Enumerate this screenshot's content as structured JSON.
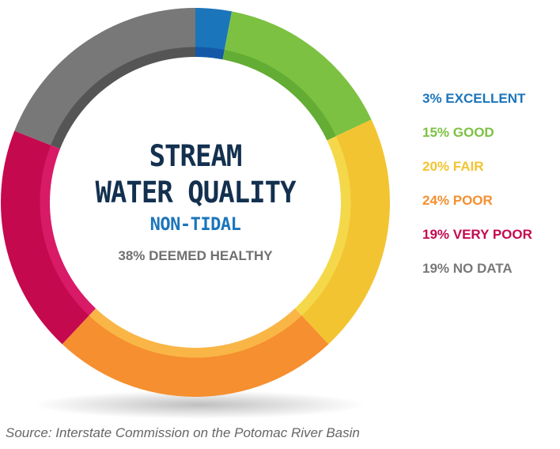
{
  "chart_data": {
    "type": "pie",
    "title": "STREAM",
    "title_line2": "WATER QUALITY",
    "subtitle": "NON-TIDAL",
    "summary": "38% DEEMED HEALTHY",
    "donut": true,
    "start": "top",
    "direction": "clockwise",
    "categories": [
      "EXCELLENT",
      "GOOD",
      "FAIR",
      "POOR",
      "VERY POOR",
      "NO DATA"
    ],
    "values": [
      3,
      15,
      20,
      24,
      19,
      19
    ],
    "labels": [
      "3% EXCELLENT",
      "15% GOOD",
      "20% FAIR",
      "24% POOR",
      "19% VERY POOR",
      "19% NO DATA"
    ],
    "colors": [
      "#1b75bb",
      "#7dc142",
      "#f3c431",
      "#f58f2f",
      "#c5094f",
      "#787878"
    ],
    "inner_colors": [
      "#1459a8",
      "#63ad34",
      "#f5d84a",
      "#f9b647",
      "#d91a66",
      "#555555"
    ],
    "legend_placement": "right"
  },
  "source": "Source: Interstate Commission on the Potomac River Basin"
}
